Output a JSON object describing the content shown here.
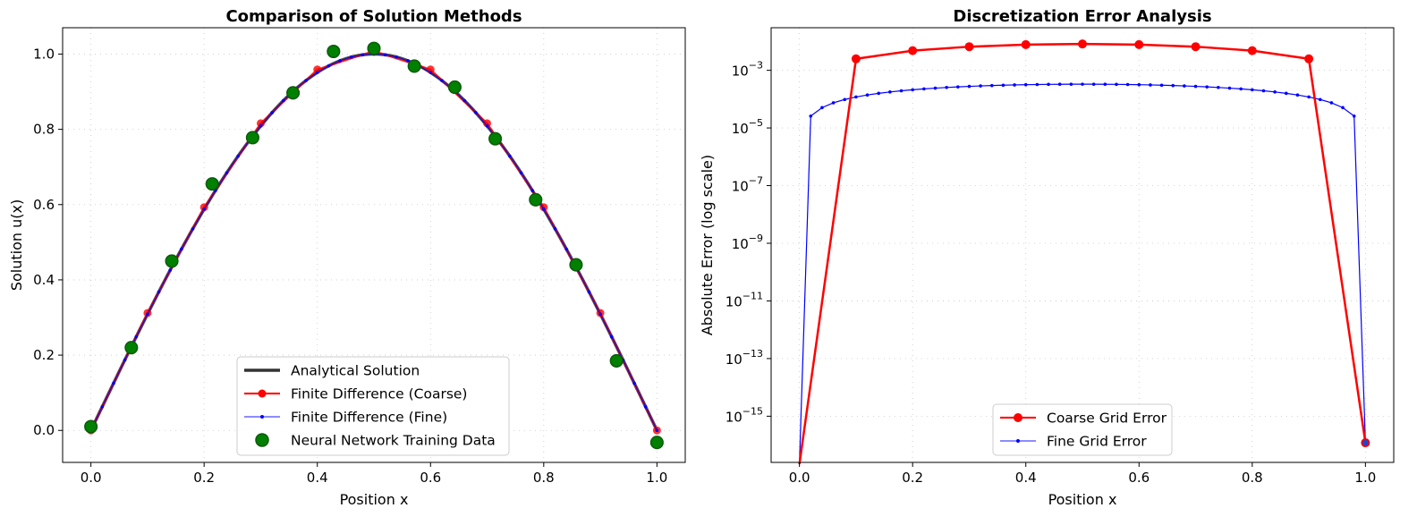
{
  "chart_data": [
    {
      "type": "line",
      "title": "Comparison of Solution Methods",
      "xlabel": "Position x",
      "ylabel": "Solution u(x)",
      "xlim": [
        -0.05,
        1.05
      ],
      "ylim": [
        -0.085,
        1.07
      ],
      "xticks": [
        "0.0",
        "0.2",
        "0.4",
        "0.6",
        "0.8",
        "1.0"
      ],
      "yticks": [
        "0.0",
        "0.2",
        "0.4",
        "0.6",
        "0.8",
        "1.0"
      ],
      "grid": true,
      "legend_position": "lower center",
      "legend": [
        "Analytical Solution",
        "Finite Difference (Coarse)",
        "Finite Difference (Fine)",
        "Neural Network Training Data"
      ],
      "series": [
        {
          "name": "Analytical Solution",
          "style": "line",
          "color": "#333333",
          "function": "sin(pi*x)",
          "x_range": [
            0,
            1
          ]
        },
        {
          "name": "Finite Difference (Coarse)",
          "style": "line-marker",
          "color": "#ff0000",
          "x": [
            0.0,
            0.1,
            0.2,
            0.3,
            0.4,
            0.5,
            0.6,
            0.7,
            0.8,
            0.9,
            1.0
          ],
          "y": [
            0.0,
            0.312,
            0.593,
            0.816,
            0.959,
            1.008,
            0.959,
            0.816,
            0.593,
            0.312,
            0.0
          ]
        },
        {
          "name": "Finite Difference (Fine)",
          "style": "line-small-marker",
          "color": "#0000ff",
          "function": "sin(pi*x)",
          "x_range": [
            0,
            1
          ],
          "points": 51
        },
        {
          "name": "Neural Network Training Data",
          "style": "scatter",
          "color": "#008000",
          "x": [
            0.0,
            0.0714,
            0.1429,
            0.2143,
            0.2857,
            0.3571,
            0.4286,
            0.5,
            0.5714,
            0.6429,
            0.7143,
            0.7857,
            0.8571,
            0.9286,
            1.0
          ],
          "y": [
            0.01,
            0.22,
            0.45,
            0.655,
            0.778,
            0.897,
            1.007,
            1.015,
            0.968,
            0.912,
            0.775,
            0.613,
            0.44,
            0.185,
            -0.032
          ]
        }
      ]
    },
    {
      "type": "line",
      "title": "Discretization Error Analysis",
      "xlabel": "Position x",
      "ylabel": "Absolute Error (log scale)",
      "yscale": "log",
      "xlim": [
        -0.05,
        1.05
      ],
      "ylim": [
        2.5e-17,
        0.03
      ],
      "xticks": [
        "0.0",
        "0.2",
        "0.4",
        "0.6",
        "0.8",
        "1.0"
      ],
      "yticks": [
        {
          "base": "10",
          "exp": "−3",
          "value": 0.001
        },
        {
          "base": "10",
          "exp": "−5",
          "value": 1e-05
        },
        {
          "base": "10",
          "exp": "−7",
          "value": 1e-07
        },
        {
          "base": "10",
          "exp": "−9",
          "value": 1e-09
        },
        {
          "base": "10",
          "exp": "−11",
          "value": 1e-11
        },
        {
          "base": "10",
          "exp": "−13",
          "value": 1e-13
        },
        {
          "base": "10",
          "exp": "−15",
          "value": 1e-15
        }
      ],
      "grid": true,
      "legend_position": "lower center",
      "legend": [
        "Coarse Grid Error",
        "Fine Grid Error"
      ],
      "series": [
        {
          "name": "Coarse Grid Error",
          "style": "line-marker",
          "color": "#ff0000",
          "x": [
            0.0,
            0.1,
            0.2,
            0.3,
            0.4,
            0.5,
            0.6,
            0.7,
            0.8,
            0.9,
            1.0
          ],
          "y": [
            0,
            0.0025,
            0.0048,
            0.0066,
            0.0078,
            0.0082,
            0.0078,
            0.0066,
            0.0048,
            0.0025,
            1.2e-16
          ]
        },
        {
          "name": "Fine Grid Error",
          "style": "line-small-marker",
          "color": "#0000ff",
          "x_range": [
            0,
            1
          ],
          "points": 51,
          "peak": 0.00033,
          "endpoint_value": 1.2e-16
        }
      ]
    }
  ]
}
